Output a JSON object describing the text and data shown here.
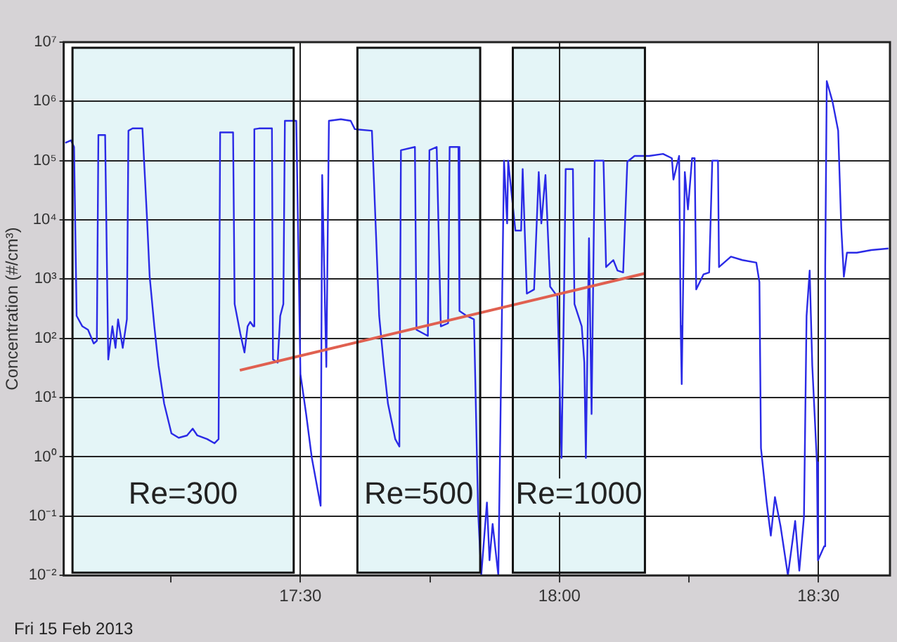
{
  "chart_data": {
    "type": "line",
    "ylabel": "Concentration (#/cm³)",
    "log": "y",
    "grid": true,
    "marker": "none",
    "line_style": "solid",
    "xlim": [
      17.043,
      18.638
    ],
    "xticks": [
      {
        "value": 17.25,
        "label": null
      },
      {
        "value": 17.5,
        "label": "17:30"
      },
      {
        "value": 17.75,
        "label": null
      },
      {
        "value": 18,
        "label": "18:00"
      },
      {
        "value": 18.25,
        "label": null
      },
      {
        "value": 18.5,
        "label": "18:30"
      }
    ],
    "ylim": [
      0.01,
      10000000
    ],
    "yticks": [
      {
        "value": 0.01,
        "label": "10⁻²"
      },
      {
        "value": 0.1,
        "label": "10⁻¹"
      },
      {
        "value": 1,
        "label": "10⁰"
      },
      {
        "value": 10,
        "label": "10¹"
      },
      {
        "value": 100,
        "label": "10²"
      },
      {
        "value": 1000,
        "label": "10³"
      },
      {
        "value": 10000,
        "label": "10⁴"
      },
      {
        "value": 100000,
        "label": "10⁵"
      },
      {
        "value": 1000000,
        "label": "10⁶"
      },
      {
        "value": 10000000,
        "label": "10⁷"
      }
    ],
    "bands": [
      {
        "axis": "x",
        "from": 17.06,
        "to": 17.487,
        "label": "Re=300",
        "color": "#e4f5f7"
      },
      {
        "axis": "x",
        "from": 17.61,
        "to": 17.847,
        "label": "Re=500",
        "color": "#e4f5f7"
      },
      {
        "axis": "x",
        "from": 17.91,
        "to": 18.165,
        "label": "Re=1000",
        "color": "#e4f5f7"
      }
    ],
    "annotations": [
      "Fri 15 Feb 2013"
    ],
    "series": [
      {
        "color": "#2a2ae6",
        "x": [
          17.046,
          17.057,
          17.063,
          17.068,
          17.079,
          17.09,
          17.101,
          17.107,
          17.11,
          17.123,
          17.129,
          17.137,
          17.143,
          17.148,
          17.157,
          17.165,
          17.168,
          17.176,
          17.195,
          17.204,
          17.209,
          17.218,
          17.226,
          17.237,
          17.251,
          17.265,
          17.281,
          17.292,
          17.301,
          17.32,
          17.334,
          17.342,
          17.345,
          17.37,
          17.373,
          17.384,
          17.392,
          17.398,
          17.403,
          17.409,
          17.411,
          17.42,
          17.445,
          17.447,
          17.456,
          17.461,
          17.467,
          17.47,
          17.492,
          17.5,
          17.511,
          17.522,
          17.539,
          17.542,
          17.55,
          17.555,
          17.578,
          17.597,
          17.605,
          17.638,
          17.641,
          17.652,
          17.661,
          17.669,
          17.683,
          17.691,
          17.694,
          17.721,
          17.724,
          17.746,
          17.749,
          17.763,
          17.771,
          17.785,
          17.788,
          17.805,
          17.807,
          17.821,
          17.835,
          17.843,
          17.849,
          17.86,
          17.865,
          17.871,
          17.882,
          17.893,
          17.899,
          17.901,
          17.915,
          17.926,
          17.929,
          17.937,
          17.951,
          17.96,
          17.965,
          17.973,
          17.982,
          17.996,
          18.004,
          18.009,
          18.012,
          18.026,
          18.029,
          18.043,
          18.048,
          18.051,
          18.057,
          18.062,
          18.068,
          18.085,
          18.09,
          18.104,
          18.112,
          18.123,
          18.131,
          18.145,
          18.173,
          18.2,
          18.217,
          18.22,
          18.231,
          18.234,
          18.236,
          18.242,
          18.248,
          18.256,
          18.261,
          18.264,
          18.278,
          18.289,
          18.295,
          18.306,
          18.308,
          18.331,
          18.353,
          18.38,
          18.386,
          18.389,
          18.4,
          18.408,
          18.416,
          18.427,
          18.441,
          18.455,
          18.463,
          18.472,
          18.477,
          18.483,
          18.488,
          18.497,
          18.499,
          18.511,
          18.513,
          18.516,
          18.527,
          18.538,
          18.544,
          18.549,
          18.555,
          18.574,
          18.602,
          18.635
        ],
        "values": [
          200000,
          220000,
          170000,
          240,
          160,
          140,
          82,
          91,
          270000,
          270000,
          44,
          160,
          69,
          210,
          69,
          210,
          320000,
          350000,
          350000,
          10000,
          1100,
          160,
          35,
          7.9,
          2.5,
          2.1,
          2.3,
          3,
          2.3,
          2,
          1.7,
          2,
          300000,
          300000,
          380,
          120,
          58,
          160,
          190,
          160,
          340000,
          350000,
          350000,
          44,
          39,
          240,
          380,
          470000,
          470000,
          25,
          5.3,
          0.96,
          0.15,
          57000,
          33,
          470000,
          500000,
          470000,
          340000,
          320000,
          72000,
          240,
          35,
          7.9,
          2,
          1.5,
          150000,
          170000,
          140,
          110,
          150000,
          170000,
          160,
          180,
          170000,
          170000,
          290,
          240,
          210,
          0.12,
          0.01,
          0.17,
          0.018,
          0.074,
          0.01,
          100000,
          8700,
          100000,
          6600,
          6600,
          72000,
          570,
          670,
          64000,
          8700,
          57000,
          750,
          510,
          0.96,
          670,
          72000,
          72000,
          380,
          160,
          39,
          0.96,
          4900,
          5.3,
          100000,
          100000,
          1600,
          2100,
          1400,
          1300,
          96000,
          120000,
          120000,
          130000,
          110000,
          48000,
          120000,
          160,
          17,
          64000,
          15000,
          110000,
          110000,
          670,
          1200,
          1300,
          100000,
          100000,
          1600,
          2400,
          2100,
          1900,
          890,
          1.4,
          0.17,
          0.047,
          0.21,
          0.066,
          0.01,
          0.083,
          0.012,
          0.098,
          240,
          1400,
          35,
          0.81,
          0.018,
          0.031,
          1600,
          2200000,
          1000000,
          320000,
          7400,
          1100,
          2800,
          2800,
          3100,
          3300
        ]
      },
      {
        "type": "line",
        "color": "#e06050",
        "x": [
          17.383,
          18.165
        ],
        "values": [
          29,
          1250
        ]
      }
    ]
  }
}
